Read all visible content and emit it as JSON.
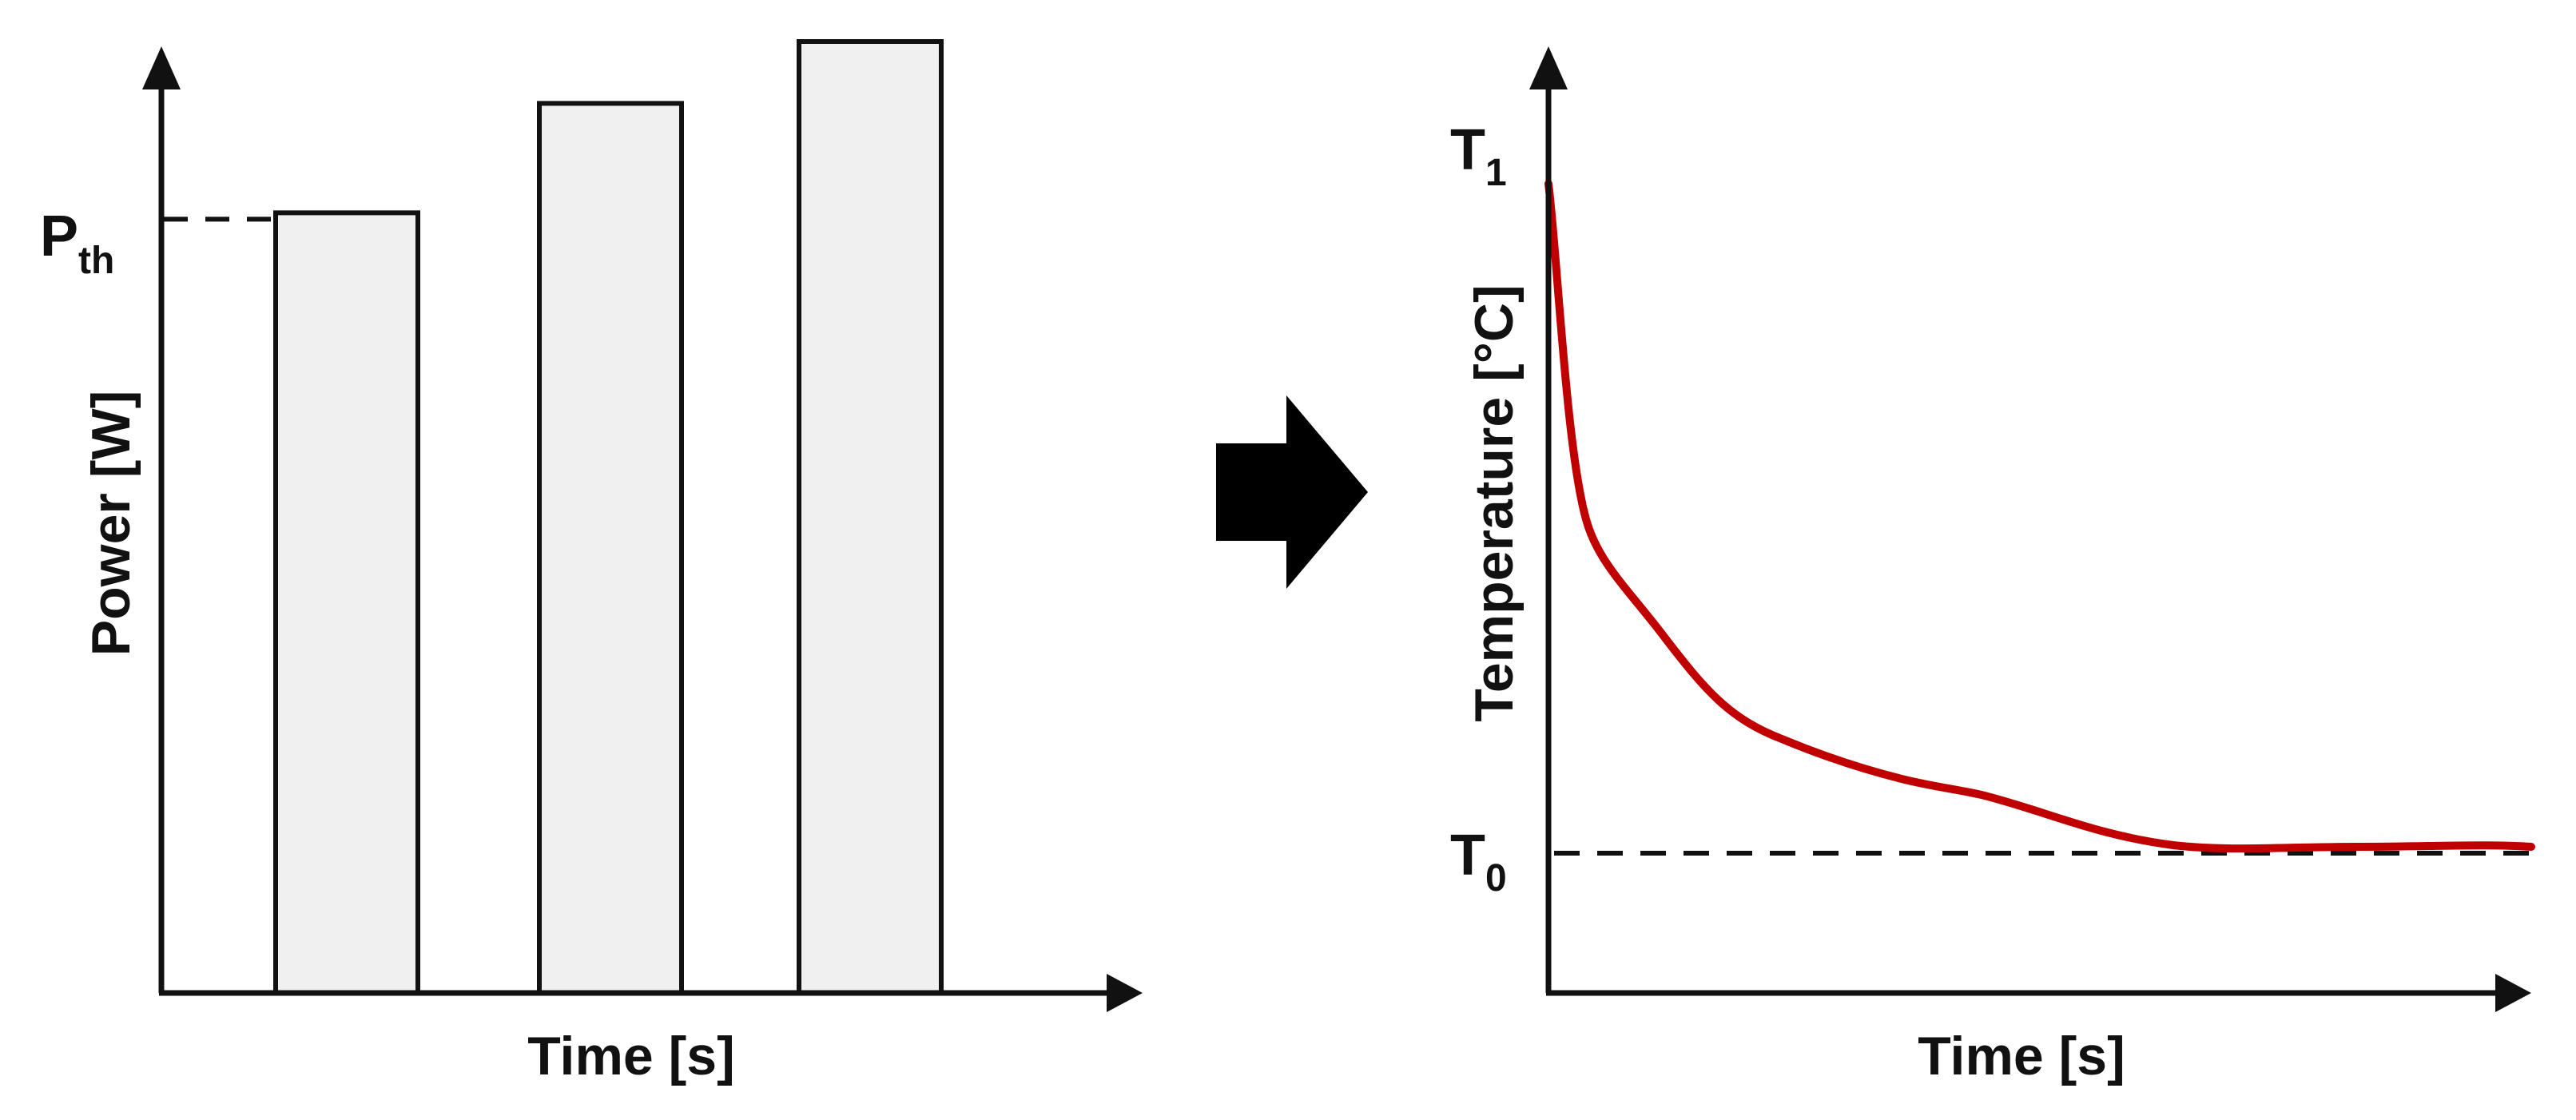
{
  "left_panel": {
    "y_axis_label": "Power [W]",
    "x_axis_label": "Time [s]",
    "threshold_label": {
      "main": "P",
      "sub": "th"
    },
    "bar_levels": [
      0.82,
      0.935,
      1.0
    ],
    "threshold_level": 0.82,
    "bar_fill": "#f0f0f0"
  },
  "right_panel": {
    "y_axis_label": "Temperature [°C]",
    "x_axis_label": "Time [s]",
    "t1_label": {
      "main": "T",
      "sub": "1"
    },
    "t0_label": {
      "main": "T",
      "sub": "0"
    },
    "curve_color": "#c00000"
  },
  "arrow_icon": "right-arrow-icon"
}
